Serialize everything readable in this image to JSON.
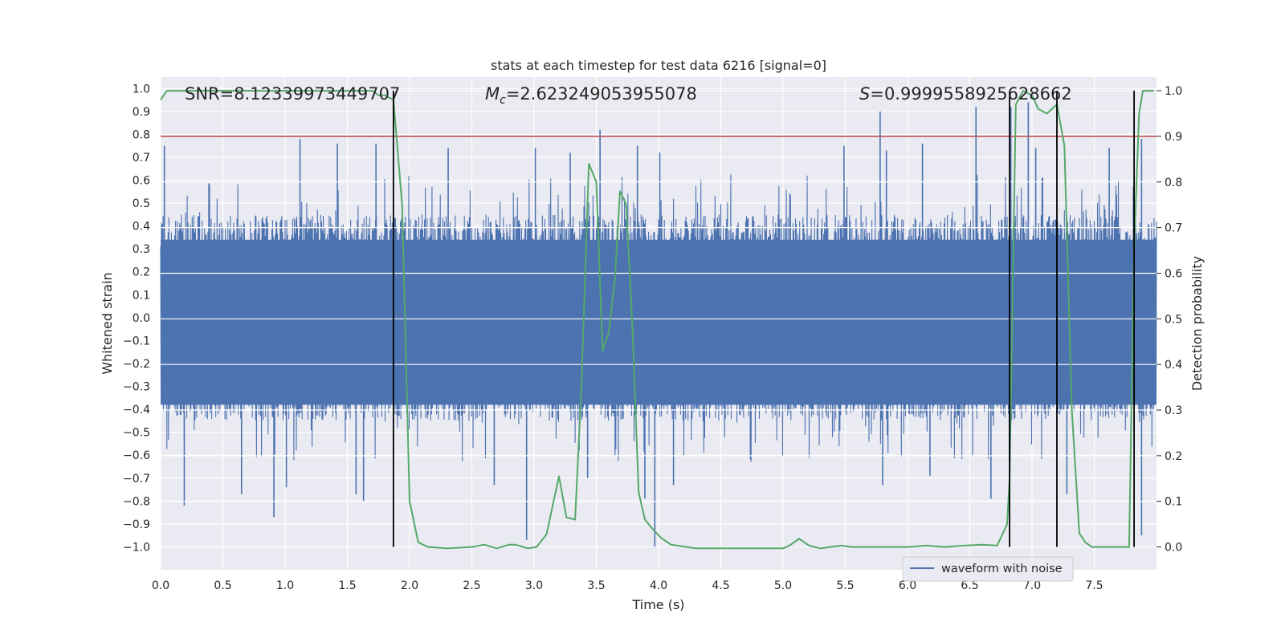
{
  "chart_data": {
    "type": "line",
    "title": "stats at each timestep for test data 6216 [signal=0]",
    "xlabel": "Time (s)",
    "ylabel": "Whitened strain",
    "y2label": "Detection probability",
    "xlim": [
      0.0,
      8.0
    ],
    "ylim": [
      -1.1,
      1.05
    ],
    "y2lim": [
      -0.05,
      1.03
    ],
    "xticks": [
      "0.0",
      "0.5",
      "1.0",
      "1.5",
      "2.0",
      "2.5",
      "3.0",
      "3.5",
      "4.0",
      "4.5",
      "5.0",
      "5.5",
      "6.0",
      "6.5",
      "7.0",
      "7.5"
    ],
    "yticks": [
      "1.0",
      "0.9",
      "0.8",
      "0.7",
      "0.6",
      "0.5",
      "0.4",
      "0.3",
      "0.2",
      "0.1",
      "0.0",
      "−0.1",
      "−0.2",
      "−0.3",
      "−0.4",
      "−0.5",
      "−0.6",
      "−0.7",
      "−0.8",
      "−0.9",
      "−1.0"
    ],
    "y2ticks": [
      "1.0",
      "0.9",
      "0.8",
      "0.7",
      "0.6",
      "0.5",
      "0.4",
      "0.3",
      "0.2",
      "0.1",
      "0.0"
    ],
    "annotations": {
      "snr": "SNR=8.12339973449707",
      "mc_symbol": "M",
      "mc_sub": "c",
      "mc_value": "=2.623249053955078",
      "s_symbol": "S",
      "s_value": "=0.9999558925628662"
    },
    "legend": {
      "label": "waveform with noise",
      "location": "lower right"
    },
    "threshold": {
      "axis": "right",
      "value": 0.9
    },
    "vlines": {
      "x": [
        1.87,
        6.82,
        7.2,
        7.82
      ],
      "top": 1.0
    },
    "waveform": {
      "name": "waveform with noise",
      "typical_range": [
        -0.45,
        0.45
      ],
      "spikes_up": [
        [
          0.03,
          0.75
        ],
        [
          1.12,
          0.78
        ],
        [
          1.42,
          0.76
        ],
        [
          1.73,
          0.76
        ],
        [
          2.31,
          0.74
        ],
        [
          3.01,
          0.74
        ],
        [
          3.29,
          0.72
        ],
        [
          3.53,
          0.82
        ],
        [
          3.83,
          0.75
        ],
        [
          4.01,
          0.72
        ],
        [
          5.49,
          0.75
        ],
        [
          5.83,
          0.73
        ],
        [
          6.12,
          0.76
        ],
        [
          6.55,
          0.92
        ],
        [
          6.83,
          0.92
        ],
        [
          7.03,
          0.74
        ],
        [
          7.62,
          0.74
        ],
        [
          7.88,
          0.78
        ],
        [
          5.78,
          0.9
        ],
        [
          6.97,
          0.94
        ]
      ],
      "spikes_down": [
        [
          0.19,
          -0.82
        ],
        [
          0.65,
          -0.77
        ],
        [
          0.91,
          -0.87
        ],
        [
          1.01,
          -0.74
        ],
        [
          1.57,
          -0.77
        ],
        [
          1.63,
          -0.8
        ],
        [
          2.94,
          -0.97
        ],
        [
          3.43,
          -0.7
        ],
        [
          3.97,
          -1.0
        ],
        [
          4.12,
          -0.73
        ],
        [
          5.8,
          -0.73
        ],
        [
          6.18,
          -0.69
        ],
        [
          6.67,
          -0.79
        ],
        [
          7.28,
          -0.77
        ],
        [
          7.88,
          -0.95
        ],
        [
          2.68,
          -0.73
        ],
        [
          3.89,
          -0.79
        ]
      ]
    },
    "series": [
      {
        "name": "detection probability",
        "axis": "right",
        "x": [
          0.0,
          0.05,
          0.1,
          0.5,
          1.0,
          1.5,
          1.7,
          1.75,
          1.8,
          1.87,
          1.94,
          2.0,
          2.07,
          2.15,
          2.3,
          2.5,
          2.6,
          2.7,
          2.8,
          2.85,
          2.95,
          3.02,
          3.1,
          3.2,
          3.26,
          3.33,
          3.38,
          3.44,
          3.5,
          3.55,
          3.6,
          3.65,
          3.69,
          3.74,
          3.79,
          3.84,
          3.89,
          3.95,
          4.02,
          4.1,
          4.3,
          4.5,
          5.0,
          5.05,
          5.13,
          5.21,
          5.3,
          5.47,
          5.55,
          6.0,
          6.15,
          6.3,
          6.45,
          6.6,
          6.72,
          6.8,
          6.82,
          6.87,
          6.93,
          7.0,
          7.05,
          7.12,
          7.2,
          7.26,
          7.32,
          7.38,
          7.43,
          7.48,
          7.6,
          7.7,
          7.78,
          7.82,
          7.86,
          7.89,
          7.93,
          7.98
        ],
        "y": [
          0.98,
          1.0,
          1.0,
          1.0,
          1.0,
          1.0,
          1.0,
          0.99,
          0.99,
          0.98,
          0.75,
          0.1,
          0.01,
          0.0,
          -0.003,
          0.0,
          0.005,
          -0.003,
          0.005,
          0.005,
          -0.003,
          0.0,
          0.028,
          0.155,
          0.065,
          0.06,
          0.35,
          0.84,
          0.8,
          0.43,
          0.47,
          0.59,
          0.78,
          0.75,
          0.48,
          0.12,
          0.06,
          0.04,
          0.02,
          0.005,
          -0.003,
          -0.003,
          -0.003,
          0.003,
          0.018,
          0.003,
          -0.003,
          0.003,
          0.0,
          0.0,
          0.003,
          0.0,
          0.003,
          0.005,
          0.003,
          0.05,
          0.15,
          0.97,
          1.0,
          0.99,
          0.96,
          0.95,
          0.97,
          0.88,
          0.3,
          0.03,
          0.01,
          0.0,
          0.0,
          0.0,
          0.0,
          0.65,
          0.95,
          1.0,
          1.0,
          1.0
        ]
      }
    ],
    "colors": {
      "background": "#eaeaf2",
      "grid": "#ffffff",
      "waveform": "#4c72b0",
      "probability": "#55a868",
      "threshold": "#c44e52",
      "vline": "#000000",
      "text": "#262626"
    }
  }
}
